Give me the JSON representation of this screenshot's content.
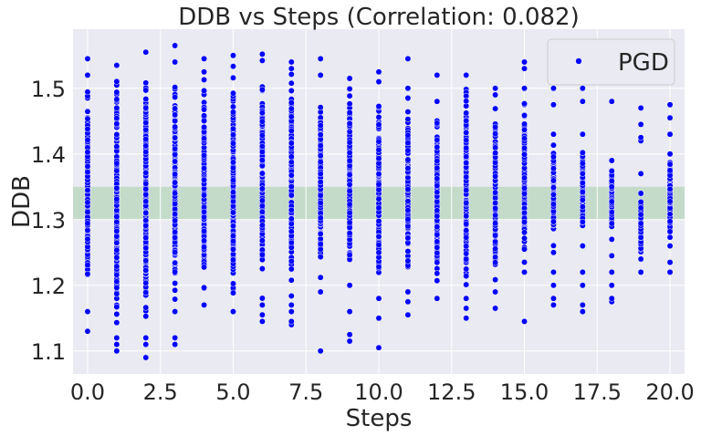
{
  "chart_data": {
    "type": "scatter",
    "title": "DDB vs Steps (Correlation: 0.082)",
    "xlabel": "Steps",
    "ylabel": "DDB",
    "xlim": [
      -0.5,
      20.5
    ],
    "ylim": [
      1.065,
      1.59
    ],
    "xticks": [
      0,
      2.5,
      5,
      7.5,
      10,
      12.5,
      15,
      17.5,
      20
    ],
    "xtick_labels": [
      "0.0",
      "2.5",
      "5.0",
      "7.5",
      "10.0",
      "12.5",
      "15.0",
      "17.5",
      "20.0"
    ],
    "yticks": [
      1.1,
      1.2,
      1.3,
      1.4,
      1.5
    ],
    "ytick_labels": [
      "1.1",
      "1.2",
      "1.3",
      "1.4",
      "1.5"
    ],
    "band": {
      "y0": 1.3,
      "y1": 1.35,
      "color": "#2ca02c",
      "opacity": 0.2
    },
    "grid": true,
    "legend": {
      "position": "top-right",
      "entries": [
        "PGD"
      ]
    },
    "series": [
      {
        "name": "PGD",
        "color": "#0000ff",
        "columns": [
          {
            "x": 0,
            "ymin": 1.16,
            "ymax": 1.52,
            "outliers": [
              1.13,
              1.545
            ]
          },
          {
            "x": 1,
            "ymin": 1.12,
            "ymax": 1.535,
            "outliers": [
              1.1,
              1.11
            ]
          },
          {
            "x": 2,
            "ymin": 1.12,
            "ymax": 1.555,
            "outliers": [
              1.09,
              1.11
            ]
          },
          {
            "x": 3,
            "ymin": 1.16,
            "ymax": 1.54,
            "outliers": [
              1.11,
              1.12,
              1.565
            ]
          },
          {
            "x": 4,
            "ymin": 1.17,
            "ymax": 1.525,
            "outliers": [
              1.545
            ]
          },
          {
            "x": 5,
            "ymin": 1.16,
            "ymax": 1.55,
            "outliers": []
          },
          {
            "x": 6,
            "ymin": 1.17,
            "ymax": 1.552,
            "outliers": [
              1.145,
              1.155
            ]
          },
          {
            "x": 7,
            "ymin": 1.17,
            "ymax": 1.53,
            "outliers": [
              1.14,
              1.145,
              1.16,
              1.54
            ]
          },
          {
            "x": 8,
            "ymin": 1.19,
            "ymax": 1.52,
            "outliers": [
              1.1,
              1.545
            ]
          },
          {
            "x": 9,
            "ymin": 1.2,
            "ymax": 1.515,
            "outliers": [
              1.115,
              1.125,
              1.16
            ]
          },
          {
            "x": 10,
            "ymin": 1.18,
            "ymax": 1.51,
            "outliers": [
              1.105,
              1.15,
              1.525
            ]
          },
          {
            "x": 11,
            "ymin": 1.19,
            "ymax": 1.5,
            "outliers": [
              1.155,
              1.175,
              1.545
            ]
          },
          {
            "x": 12,
            "ymin": 1.18,
            "ymax": 1.48,
            "outliers": [
              1.52
            ]
          },
          {
            "x": 13,
            "ymin": 1.18,
            "ymax": 1.52,
            "outliers": [
              1.15,
              1.165
            ]
          },
          {
            "x": 14,
            "ymin": 1.19,
            "ymax": 1.49,
            "outliers": [
              1.165,
              1.5
            ]
          },
          {
            "x": 15,
            "ymin": 1.22,
            "ymax": 1.5,
            "outliers": [
              1.145,
              1.53,
              1.54
            ]
          },
          {
            "x": 16,
            "ymin": 1.25,
            "ymax": 1.43,
            "outliers": [
              1.17,
              1.18,
              1.2,
              1.22,
              1.475,
              1.5
            ]
          },
          {
            "x": 17,
            "ymin": 1.26,
            "ymax": 1.43,
            "outliers": [
              1.16,
              1.17,
              1.2,
              1.22,
              1.37,
              1.48,
              1.5
            ]
          },
          {
            "x": 18,
            "ymin": 1.27,
            "ymax": 1.39,
            "outliers": [
              1.175,
              1.18,
              1.2,
              1.22,
              1.245,
              1.48
            ]
          },
          {
            "x": 19,
            "ymin": 1.24,
            "ymax": 1.34,
            "outliers": [
              1.22,
              1.37,
              1.42,
              1.425,
              1.445,
              1.47
            ]
          },
          {
            "x": 20,
            "ymin": 1.26,
            "ymax": 1.4,
            "outliers": [
              1.22,
              1.235,
              1.43,
              1.455,
              1.475
            ]
          }
        ]
      }
    ]
  }
}
